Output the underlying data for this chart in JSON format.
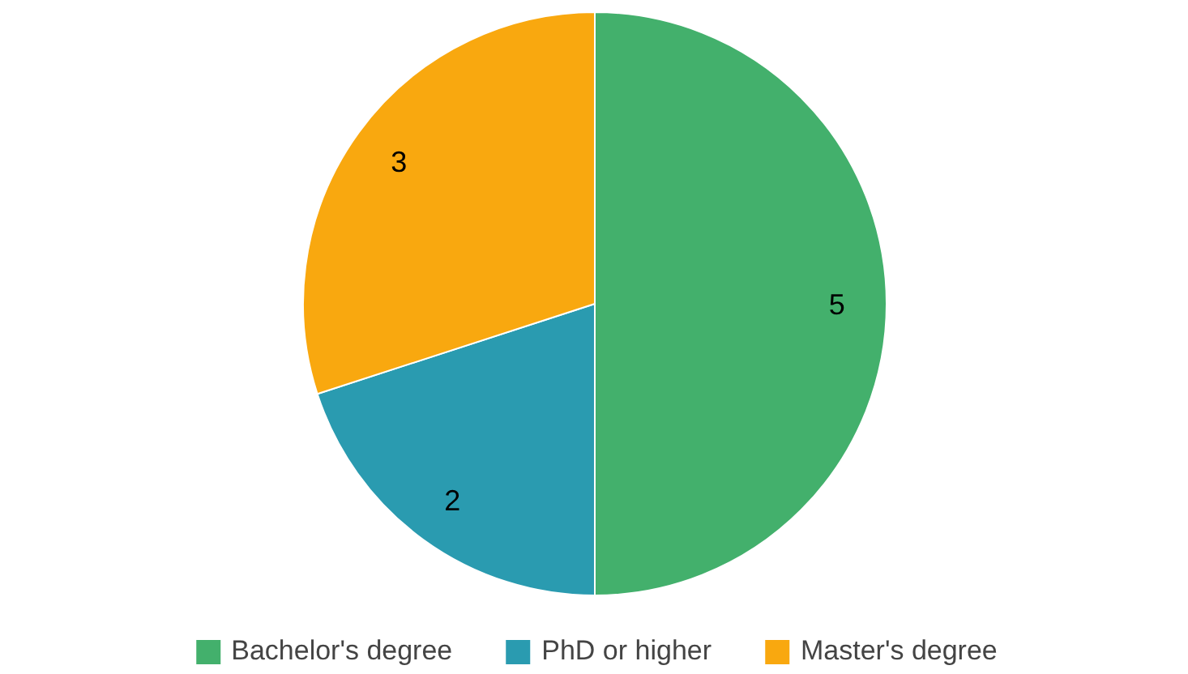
{
  "chart_data": {
    "type": "pie",
    "categories": [
      "Bachelor's degree",
      "PhD or higher",
      "Master's degree"
    ],
    "values": [
      5,
      2,
      3
    ],
    "colors": [
      "#43b06c",
      "#2a9bb0",
      "#f9a80f"
    ],
    "data_labels": true,
    "legend": "bottom"
  }
}
